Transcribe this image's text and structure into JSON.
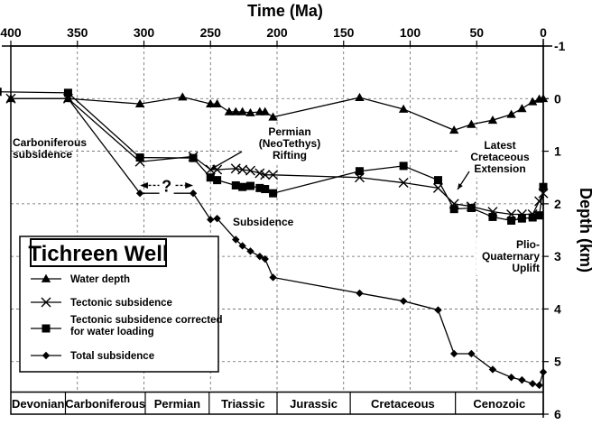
{
  "chart_data": {
    "type": "line",
    "x_axis": {
      "label": "Time (Ma)",
      "range": [
        400,
        0
      ],
      "ticks": [
        400,
        350,
        300,
        250,
        200,
        150,
        100,
        50,
        0
      ]
    },
    "y_axis": {
      "label": "Depth (km)",
      "range": [
        -1,
        6
      ],
      "inverted": true,
      "ticks": [
        -1,
        0,
        1,
        2,
        3,
        4,
        5,
        6
      ]
    },
    "grid": true,
    "legend": {
      "title": "Tichreen Well",
      "placement": "lower-left",
      "entries": [
        {
          "label": "Water depth",
          "marker": "triangle"
        },
        {
          "label": "Tectonic subsidence",
          "marker": "x"
        },
        {
          "label": "Tectonic subsidence corrected for water loading",
          "marker": "square"
        },
        {
          "label": "Total subsidence",
          "marker": "diamond"
        }
      ]
    },
    "series": [
      {
        "name": "Water depth",
        "marker": "triangle",
        "points": [
          [
            400,
            0
          ],
          [
            357,
            0
          ],
          [
            303,
            0.1
          ],
          [
            271,
            -0.03
          ],
          [
            250,
            0.1
          ],
          [
            245,
            0.1
          ],
          [
            236,
            0.25
          ],
          [
            231,
            0.25
          ],
          [
            226,
            0.25
          ],
          [
            220,
            0.27
          ],
          [
            213,
            0.25
          ],
          [
            209,
            0.25
          ],
          [
            203,
            0.35
          ],
          [
            138,
            -0.02
          ],
          [
            105,
            0.2
          ],
          [
            67,
            0.6
          ],
          [
            54,
            0.49
          ],
          [
            38,
            0.41
          ],
          [
            24,
            0.3
          ],
          [
            16,
            0.19
          ],
          [
            8,
            0.06
          ],
          [
            3,
            0.01
          ],
          [
            0,
            0
          ]
        ]
      },
      {
        "name": "Tectonic subsidence",
        "marker": "x",
        "points": [
          [
            400,
            0
          ],
          [
            357,
            0
          ],
          [
            303,
            1.2
          ],
          [
            263,
            1.1
          ],
          [
            250,
            1.35
          ],
          [
            245,
            1.35
          ],
          [
            231,
            1.33
          ],
          [
            226,
            1.35
          ],
          [
            220,
            1.37
          ],
          [
            213,
            1.42
          ],
          [
            209,
            1.45
          ],
          [
            203,
            1.45
          ],
          [
            138,
            1.5
          ],
          [
            105,
            1.6
          ],
          [
            79,
            1.7
          ],
          [
            67,
            2.0
          ],
          [
            54,
            2.05
          ],
          [
            38,
            2.15
          ],
          [
            24,
            2.2
          ],
          [
            16,
            2.2
          ],
          [
            8,
            2.2
          ],
          [
            3,
            1.95
          ],
          [
            0,
            1.8
          ]
        ]
      },
      {
        "name": "Tectonic subsidence corrected for water loading",
        "marker": "square",
        "points": [
          [
            410,
            -0.13
          ],
          [
            357,
            -0.11
          ],
          [
            303,
            1.12
          ],
          [
            263,
            1.13
          ],
          [
            250,
            1.5
          ],
          [
            245,
            1.55
          ],
          [
            231,
            1.65
          ],
          [
            226,
            1.68
          ],
          [
            220,
            1.66
          ],
          [
            213,
            1.7
          ],
          [
            209,
            1.72
          ],
          [
            203,
            1.8
          ],
          [
            138,
            1.38
          ],
          [
            105,
            1.28
          ],
          [
            79,
            1.55
          ],
          [
            67,
            2.1
          ],
          [
            54,
            2.08
          ],
          [
            38,
            2.25
          ],
          [
            24,
            2.32
          ],
          [
            16,
            2.28
          ],
          [
            8,
            2.26
          ],
          [
            3,
            2.22
          ],
          [
            0,
            1.68
          ]
        ]
      },
      {
        "name": "Total subsidence",
        "marker": "diamond",
        "points": [
          [
            357,
            0
          ],
          [
            303,
            1.8
          ],
          [
            263,
            1.8
          ],
          [
            250,
            2.3
          ],
          [
            245,
            2.28
          ],
          [
            231,
            2.68
          ],
          [
            226,
            2.8
          ],
          [
            220,
            2.9
          ],
          [
            213,
            3.0
          ],
          [
            209,
            3.05
          ],
          [
            203,
            3.4
          ],
          [
            138,
            3.7
          ],
          [
            105,
            3.85
          ],
          [
            79,
            4.02
          ],
          [
            67,
            4.85
          ],
          [
            54,
            4.85
          ],
          [
            38,
            5.15
          ],
          [
            24,
            5.3
          ],
          [
            16,
            5.35
          ],
          [
            8,
            5.42
          ],
          [
            3,
            5.45
          ],
          [
            0,
            5.2
          ]
        ]
      }
    ],
    "annotations": [
      {
        "id": "carb",
        "lines": [
          "Carboniferous",
          "subsidence"
        ]
      },
      {
        "id": "permian",
        "lines": [
          "Permian",
          "(NeoTethys)",
          "Rifting"
        ]
      },
      {
        "id": "latest",
        "lines": [
          "Latest",
          "Cretaceous",
          "Extension"
        ]
      },
      {
        "id": "subsidence",
        "lines": [
          "Subsidence"
        ]
      },
      {
        "id": "plio",
        "lines": [
          "Plio-",
          "Quaternary",
          "Uplift"
        ]
      },
      {
        "id": "question",
        "lines": [
          "?"
        ]
      }
    ],
    "periods": [
      {
        "name": "Devonian",
        "from": 400,
        "to": 359
      },
      {
        "name": "Carboniferous",
        "from": 359,
        "to": 299
      },
      {
        "name": "Permian",
        "from": 299,
        "to": 251
      },
      {
        "name": "Triassic",
        "from": 251,
        "to": 200
      },
      {
        "name": "Jurassic",
        "from": 200,
        "to": 145
      },
      {
        "name": "Cretaceous",
        "from": 145,
        "to": 66
      },
      {
        "name": "Cenozoic",
        "from": 66,
        "to": 0
      }
    ]
  }
}
